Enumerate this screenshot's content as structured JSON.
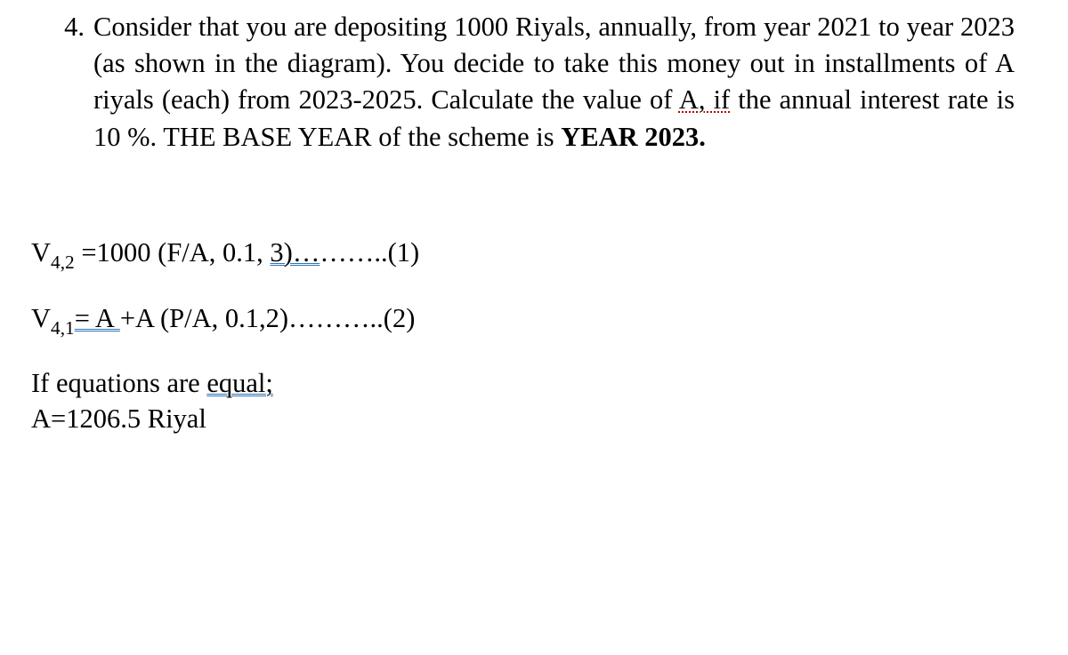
{
  "problem": {
    "number": "4.",
    "sentence1_pre": "Consider that you are depositing 1000 Riyals, annually, from year 2021 to year 2023 (as shown in the diagram).  You decide to take this money out in installments of A riyals (each) from 2023-2025. Calculate the value of ",
    "a_if": "A, if",
    "sentence1_post": " the annual interest rate is 10 %. THE BASE YEAR of the scheme   is ",
    "year_bold": "YEAR 2023."
  },
  "eq1": {
    "lhs_pre": "V",
    "lhs_sub": "4,2",
    "lhs_rest": "  =1000 (F/A, 0.1, ",
    "u": "3)…",
    "tail": "……..(1)"
  },
  "eq2": {
    "lhs_pre": "V",
    "lhs_sub": "4,1",
    "u1": "=  A ",
    "mid": "+A (P/A, 0.1,2)…",
    "tail": "……..(2)"
  },
  "concl": {
    "line1_pre": "If equations are ",
    "line1_u": "equal;",
    "line2": "A=1206.5 Riyal"
  }
}
